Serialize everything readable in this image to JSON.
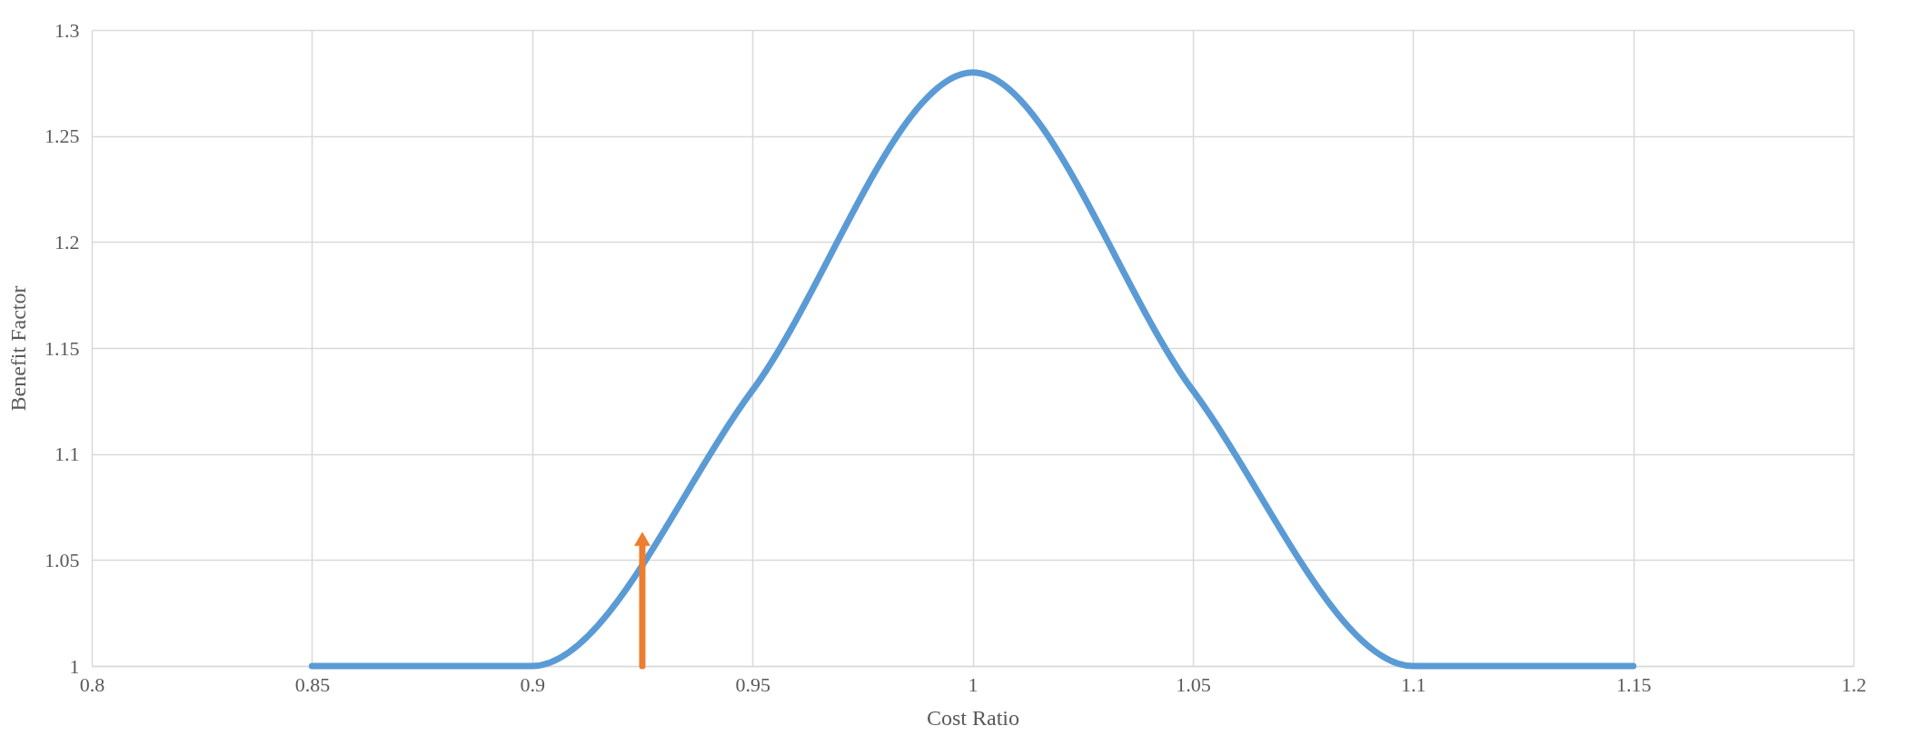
{
  "chart_data": {
    "type": "line",
    "xlabel": "Cost Ratio",
    "ylabel": "Benefit Factor",
    "xlim": [
      0.8,
      1.2
    ],
    "xticks": [
      0.8,
      0.85,
      0.9,
      0.95,
      1,
      1.05,
      1.1,
      1.15,
      1.2
    ],
    "ylim": [
      1,
      1.3
    ],
    "yticks": [
      1,
      1.05,
      1.1,
      1.15,
      1.2,
      1.25,
      1.3
    ],
    "grid": true,
    "line_style": "solid",
    "series": [
      {
        "color": "#5b9bd5",
        "x": [
          0.85,
          0.9,
          0.95,
          1,
          1.05,
          1.1,
          1.15
        ],
        "values": [
          1,
          1,
          1.13,
          1.28,
          1.13,
          1,
          1
        ]
      },
      {
        "color": "#ed7d31",
        "x": [
          0.925,
          0.925
        ],
        "values": [
          1,
          1.06
        ],
        "marker": "triangle"
      }
    ]
  }
}
